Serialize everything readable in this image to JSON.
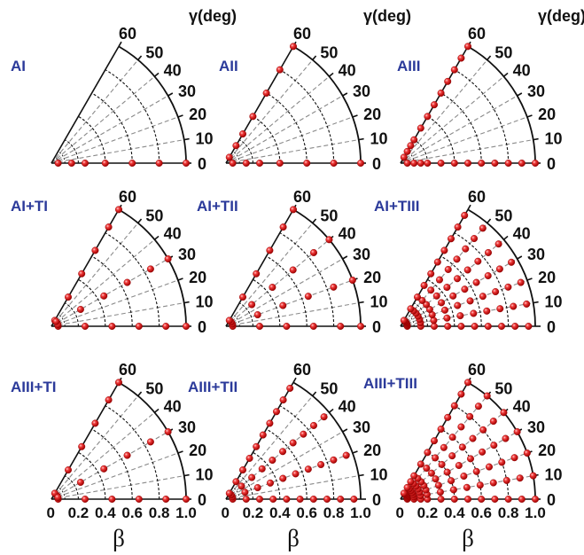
{
  "chart_data": {
    "type": "scatter",
    "coordinate_system": "polar sector",
    "x_axis": {
      "label": "β",
      "range": [
        0,
        1.0
      ],
      "ticks": [
        "0",
        "0.2",
        "0.4",
        "0.6",
        "0.8",
        "1.0"
      ]
    },
    "angle_axis": {
      "label": "γ(deg)",
      "range_deg": [
        0,
        60
      ],
      "ticks": [
        "0",
        "10",
        "20",
        "30",
        "40",
        "50",
        "60"
      ]
    },
    "marker_color": "#e02020",
    "panels": [
      {
        "label": "AI",
        "row": 0,
        "col": 0,
        "show_angle_title": true,
        "show_x_ticks": false,
        "points": [
          [
            0.05,
            0
          ],
          [
            0.15,
            0
          ],
          [
            0.25,
            0
          ],
          [
            0.4,
            0
          ],
          [
            0.6,
            0
          ],
          [
            0.8,
            0
          ],
          [
            1.0,
            0
          ]
        ]
      },
      {
        "label": "AII",
        "row": 0,
        "col": 1,
        "show_angle_title": true,
        "show_x_ticks": false,
        "points": [
          [
            0.05,
            0
          ],
          [
            0.15,
            0
          ],
          [
            0.25,
            0
          ],
          [
            0.4,
            0
          ],
          [
            0.6,
            0
          ],
          [
            0.8,
            0
          ],
          [
            1.0,
            0
          ],
          [
            0.05,
            60
          ],
          [
            0.15,
            60
          ],
          [
            0.25,
            60
          ],
          [
            0.4,
            60
          ],
          [
            0.6,
            60
          ],
          [
            0.8,
            60
          ],
          [
            1.0,
            60
          ]
        ]
      },
      {
        "label": "AIII",
        "row": 0,
        "col": 2,
        "show_angle_title": true,
        "show_x_ticks": false,
        "points": [
          [
            0.05,
            0
          ],
          [
            0.1,
            0
          ],
          [
            0.15,
            0
          ],
          [
            0.2,
            0
          ],
          [
            0.3,
            0
          ],
          [
            0.4,
            0
          ],
          [
            0.5,
            0
          ],
          [
            0.6,
            0
          ],
          [
            0.7,
            0
          ],
          [
            0.8,
            0
          ],
          [
            0.9,
            0
          ],
          [
            1.0,
            0
          ],
          [
            0.05,
            60
          ],
          [
            0.1,
            60
          ],
          [
            0.15,
            60
          ],
          [
            0.2,
            60
          ],
          [
            0.3,
            60
          ],
          [
            0.4,
            60
          ],
          [
            0.5,
            60
          ],
          [
            0.6,
            60
          ],
          [
            0.7,
            60
          ],
          [
            0.8,
            60
          ],
          [
            0.9,
            60
          ],
          [
            1.0,
            60
          ]
        ]
      },
      {
        "label": "AI+TI",
        "row": 1,
        "col": 0,
        "show_angle_title": false,
        "show_x_ticks": false,
        "points": [
          [
            0.05,
            0
          ],
          [
            0.25,
            0
          ],
          [
            0.45,
            0
          ],
          [
            0.65,
            0
          ],
          [
            0.85,
            0
          ],
          [
            1.0,
            0
          ],
          [
            0.05,
            30
          ],
          [
            0.25,
            30
          ],
          [
            0.45,
            30
          ],
          [
            0.65,
            30
          ],
          [
            0.85,
            30
          ],
          [
            1.0,
            30
          ],
          [
            0.05,
            60
          ],
          [
            0.25,
            60
          ],
          [
            0.45,
            60
          ],
          [
            0.65,
            60
          ],
          [
            0.85,
            60
          ],
          [
            1.0,
            60
          ],
          [
            0.05,
            15
          ],
          [
            0.05,
            45
          ]
        ]
      },
      {
        "label": "AI+TII",
        "row": 1,
        "col": 1,
        "show_angle_title": false,
        "show_x_ticks": false,
        "points": [
          [
            0.05,
            0
          ],
          [
            0.25,
            0
          ],
          [
            0.45,
            0
          ],
          [
            0.65,
            0
          ],
          [
            0.85,
            0
          ],
          [
            1.0,
            0
          ],
          [
            0.05,
            20
          ],
          [
            0.25,
            20
          ],
          [
            0.45,
            20
          ],
          [
            0.65,
            20
          ],
          [
            0.85,
            20
          ],
          [
            1.0,
            20
          ],
          [
            0.05,
            40
          ],
          [
            0.25,
            40
          ],
          [
            0.45,
            40
          ],
          [
            0.65,
            40
          ],
          [
            0.85,
            40
          ],
          [
            1.0,
            40
          ],
          [
            0.05,
            60
          ],
          [
            0.25,
            60
          ],
          [
            0.45,
            60
          ],
          [
            0.65,
            60
          ],
          [
            0.85,
            60
          ],
          [
            1.0,
            60
          ]
        ]
      },
      {
        "label": "AI+TIII",
        "row": 1,
        "col": 2,
        "show_angle_title": false,
        "show_x_ticks": false,
        "points": [
          [
            0.05,
            0
          ],
          [
            0.15,
            0
          ],
          [
            0.25,
            0
          ],
          [
            0.35,
            0
          ],
          [
            0.45,
            0
          ],
          [
            0.55,
            0
          ],
          [
            0.65,
            0
          ],
          [
            0.75,
            0
          ],
          [
            0.85,
            0
          ],
          [
            0.95,
            0
          ],
          [
            0.05,
            10
          ],
          [
            0.15,
            10
          ],
          [
            0.25,
            10
          ],
          [
            0.35,
            10
          ],
          [
            0.45,
            10
          ],
          [
            0.55,
            10
          ],
          [
            0.65,
            10
          ],
          [
            0.75,
            10
          ],
          [
            0.85,
            10
          ],
          [
            0.95,
            10
          ],
          [
            0.05,
            20
          ],
          [
            0.15,
            20
          ],
          [
            0.25,
            20
          ],
          [
            0.35,
            20
          ],
          [
            0.45,
            20
          ],
          [
            0.55,
            20
          ],
          [
            0.65,
            20
          ],
          [
            0.75,
            20
          ],
          [
            0.85,
            20
          ],
          [
            0.95,
            20
          ],
          [
            0.05,
            30
          ],
          [
            0.15,
            30
          ],
          [
            0.25,
            30
          ],
          [
            0.35,
            30
          ],
          [
            0.45,
            30
          ],
          [
            0.55,
            30
          ],
          [
            0.65,
            30
          ],
          [
            0.75,
            30
          ],
          [
            0.85,
            30
          ],
          [
            0.95,
            30
          ],
          [
            0.05,
            40
          ],
          [
            0.15,
            40
          ],
          [
            0.25,
            40
          ],
          [
            0.35,
            40
          ],
          [
            0.45,
            40
          ],
          [
            0.55,
            40
          ],
          [
            0.65,
            40
          ],
          [
            0.75,
            40
          ],
          [
            0.85,
            40
          ],
          [
            0.95,
            40
          ],
          [
            0.05,
            50
          ],
          [
            0.15,
            50
          ],
          [
            0.25,
            50
          ],
          [
            0.35,
            50
          ],
          [
            0.45,
            50
          ],
          [
            0.55,
            50
          ],
          [
            0.65,
            50
          ],
          [
            0.75,
            50
          ],
          [
            0.85,
            50
          ],
          [
            0.95,
            50
          ],
          [
            0.05,
            60
          ],
          [
            0.15,
            60
          ],
          [
            0.25,
            60
          ],
          [
            0.35,
            60
          ],
          [
            0.45,
            60
          ],
          [
            0.55,
            60
          ],
          [
            0.65,
            60
          ],
          [
            0.75,
            60
          ],
          [
            0.85,
            60
          ],
          [
            0.95,
            60
          ]
        ]
      },
      {
        "label": "AIII+TI",
        "row": 2,
        "col": 0,
        "show_angle_title": false,
        "show_x_ticks": true,
        "points": [
          [
            0.05,
            0
          ],
          [
            0.25,
            0
          ],
          [
            0.45,
            0
          ],
          [
            0.65,
            0
          ],
          [
            0.85,
            0
          ],
          [
            1.0,
            0
          ],
          [
            0.05,
            30
          ],
          [
            0.25,
            30
          ],
          [
            0.45,
            30
          ],
          [
            0.65,
            30
          ],
          [
            0.85,
            30
          ],
          [
            1.0,
            30
          ],
          [
            0.05,
            60
          ],
          [
            0.25,
            60
          ],
          [
            0.45,
            60
          ],
          [
            0.65,
            60
          ],
          [
            0.85,
            60
          ],
          [
            1.0,
            60
          ],
          [
            0.05,
            15
          ]
        ]
      },
      {
        "label": "AIII+TII",
        "row": 2,
        "col": 1,
        "show_angle_title": false,
        "show_x_ticks": true,
        "points": [
          [
            0.05,
            0
          ],
          [
            0.15,
            0
          ],
          [
            0.25,
            0
          ],
          [
            0.35,
            0
          ],
          [
            0.45,
            0
          ],
          [
            0.55,
            0
          ],
          [
            0.65,
            0
          ],
          [
            0.75,
            0
          ],
          [
            0.85,
            0
          ],
          [
            0.95,
            0
          ],
          [
            0.05,
            20
          ],
          [
            0.15,
            20
          ],
          [
            0.25,
            20
          ],
          [
            0.35,
            20
          ],
          [
            0.45,
            20
          ],
          [
            0.55,
            20
          ],
          [
            0.65,
            20
          ],
          [
            0.75,
            20
          ],
          [
            0.85,
            20
          ],
          [
            0.95,
            20
          ],
          [
            0.05,
            40
          ],
          [
            0.15,
            40
          ],
          [
            0.25,
            40
          ],
          [
            0.35,
            40
          ],
          [
            0.45,
            40
          ],
          [
            0.55,
            40
          ],
          [
            0.65,
            40
          ],
          [
            0.75,
            40
          ],
          [
            0.85,
            40
          ],
          [
            0.95,
            40
          ],
          [
            0.05,
            60
          ],
          [
            0.15,
            60
          ],
          [
            0.25,
            60
          ],
          [
            0.35,
            60
          ],
          [
            0.45,
            60
          ],
          [
            0.55,
            60
          ],
          [
            0.65,
            60
          ],
          [
            0.75,
            60
          ],
          [
            0.85,
            60
          ],
          [
            0.95,
            60
          ]
        ]
      },
      {
        "label": "AIII+TIII",
        "row": 2,
        "col": 2,
        "show_angle_title": false,
        "show_x_ticks": true,
        "points": [
          [
            0.05,
            0
          ],
          [
            0.1,
            0
          ],
          [
            0.15,
            0
          ],
          [
            0.2,
            0
          ],
          [
            0.3,
            0
          ],
          [
            0.4,
            0
          ],
          [
            0.5,
            0
          ],
          [
            0.6,
            0
          ],
          [
            0.7,
            0
          ],
          [
            0.8,
            0
          ],
          [
            0.9,
            0
          ],
          [
            1.0,
            0
          ],
          [
            0.05,
            10
          ],
          [
            0.1,
            10
          ],
          [
            0.15,
            10
          ],
          [
            0.2,
            10
          ],
          [
            0.3,
            10
          ],
          [
            0.4,
            10
          ],
          [
            0.5,
            10
          ],
          [
            0.6,
            10
          ],
          [
            0.7,
            10
          ],
          [
            0.8,
            10
          ],
          [
            0.9,
            10
          ],
          [
            1.0,
            10
          ],
          [
            0.05,
            20
          ],
          [
            0.1,
            20
          ],
          [
            0.15,
            20
          ],
          [
            0.2,
            20
          ],
          [
            0.3,
            20
          ],
          [
            0.4,
            20
          ],
          [
            0.5,
            20
          ],
          [
            0.6,
            20
          ],
          [
            0.7,
            20
          ],
          [
            0.8,
            20
          ],
          [
            0.9,
            20
          ],
          [
            1.0,
            20
          ],
          [
            0.05,
            30
          ],
          [
            0.1,
            30
          ],
          [
            0.15,
            30
          ],
          [
            0.2,
            30
          ],
          [
            0.3,
            30
          ],
          [
            0.4,
            30
          ],
          [
            0.5,
            30
          ],
          [
            0.6,
            30
          ],
          [
            0.7,
            30
          ],
          [
            0.8,
            30
          ],
          [
            0.9,
            30
          ],
          [
            1.0,
            30
          ],
          [
            0.05,
            40
          ],
          [
            0.1,
            40
          ],
          [
            0.15,
            40
          ],
          [
            0.2,
            40
          ],
          [
            0.3,
            40
          ],
          [
            0.4,
            40
          ],
          [
            0.5,
            40
          ],
          [
            0.6,
            40
          ],
          [
            0.7,
            40
          ],
          [
            0.8,
            40
          ],
          [
            0.9,
            40
          ],
          [
            1.0,
            40
          ],
          [
            0.05,
            50
          ],
          [
            0.1,
            50
          ],
          [
            0.15,
            50
          ],
          [
            0.2,
            50
          ],
          [
            0.3,
            50
          ],
          [
            0.4,
            50
          ],
          [
            0.5,
            50
          ],
          [
            0.6,
            50
          ],
          [
            0.7,
            50
          ],
          [
            0.8,
            50
          ],
          [
            0.9,
            50
          ],
          [
            1.0,
            50
          ],
          [
            0.05,
            60
          ],
          [
            0.1,
            60
          ],
          [
            0.15,
            60
          ],
          [
            0.2,
            60
          ],
          [
            0.3,
            60
          ],
          [
            0.4,
            60
          ],
          [
            0.5,
            60
          ],
          [
            0.6,
            60
          ],
          [
            0.7,
            60
          ],
          [
            0.8,
            60
          ],
          [
            0.9,
            60
          ],
          [
            1.0,
            60
          ]
        ]
      }
    ]
  }
}
